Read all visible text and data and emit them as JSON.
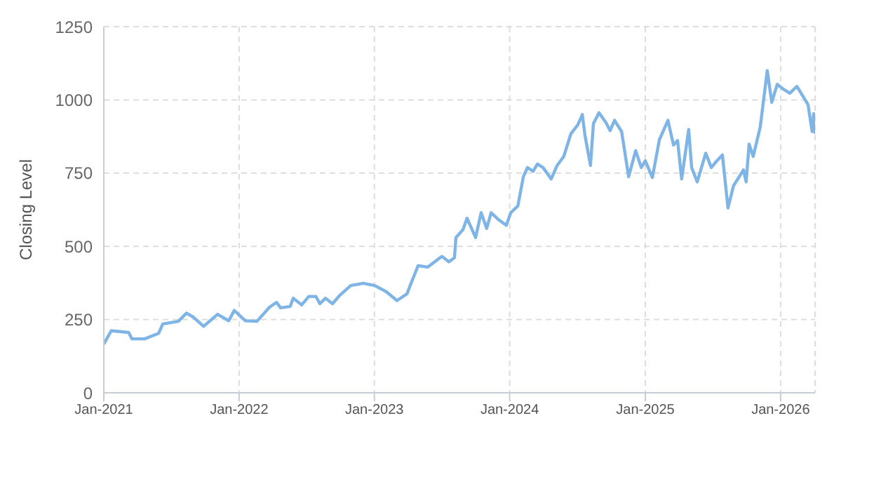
{
  "chart_data": {
    "type": "line",
    "ylabel": "Closing Level",
    "x": [
      "2021-01-01",
      "2021-01-21",
      "2021-03-09",
      "2021-03-18",
      "2021-04-21",
      "2021-05-29",
      "2021-06-09",
      "2021-07-21",
      "2021-08-12",
      "2021-08-31",
      "2021-09-27",
      "2021-11-04",
      "2021-12-04",
      "2021-12-19",
      "2022-01-18",
      "2022-02-18",
      "2022-03-24",
      "2022-04-12",
      "2022-04-23",
      "2022-05-19",
      "2022-05-27",
      "2022-06-19",
      "2022-07-08",
      "2022-07-27",
      "2022-08-07",
      "2022-08-22",
      "2022-09-10",
      "2022-09-29",
      "2022-10-29",
      "2022-12-02",
      "2023-01-02",
      "2023-02-01",
      "2023-03-03",
      "2023-03-30",
      "2023-04-10",
      "2023-04-29",
      "2023-05-25",
      "2023-07-02",
      "2023-07-21",
      "2023-08-05",
      "2023-08-09",
      "2023-08-28",
      "2023-09-08",
      "2023-10-01",
      "2023-10-16",
      "2023-10-31",
      "2023-11-12",
      "2023-12-01",
      "2023-12-23",
      "2024-01-04",
      "2024-01-23",
      "2024-02-07",
      "2024-02-18",
      "2024-03-04",
      "2024-03-16",
      "2024-03-31",
      "2024-04-22",
      "2024-05-08",
      "2024-05-26",
      "2024-06-14",
      "2024-07-03",
      "2024-07-15",
      "2024-07-22",
      "2024-08-06",
      "2024-08-14",
      "2024-08-29",
      "2024-09-17",
      "2024-09-28",
      "2024-10-10",
      "2024-10-29",
      "2024-11-17",
      "2024-12-06",
      "2024-12-21",
      "2025-01-01",
      "2025-01-20",
      "2025-02-08",
      "2025-03-03",
      "2025-03-18",
      "2025-03-29",
      "2025-04-09",
      "2025-04-28",
      "2025-05-06",
      "2025-05-21",
      "2025-06-13",
      "2025-06-28",
      "2025-07-13",
      "2025-07-28",
      "2025-08-12",
      "2025-08-27",
      "2025-09-23",
      "2025-09-30",
      "2025-10-08",
      "2025-10-19",
      "2025-11-07",
      "2025-11-26",
      "2025-12-08",
      "2025-12-23",
      "2026-01-07",
      "2026-01-26",
      "2026-02-14",
      "2026-03-01",
      "2026-03-16",
      "2026-03-27",
      "2026-03-31",
      "2026-04-04"
    ],
    "series": [
      {
        "color": "#7eb4e6",
        "values": [
          166,
          212,
          206,
          184,
          184,
          203,
          235,
          244,
          272,
          258,
          227,
          268,
          246,
          281,
          246,
          244,
          292,
          309,
          290,
          295,
          323,
          300,
          329,
          329,
          304,
          323,
          304,
          332,
          366,
          374,
          366,
          346,
          315,
          338,
          374,
          434,
          429,
          466,
          447,
          461,
          530,
          557,
          596,
          530,
          615,
          561,
          615,
          592,
          572,
          615,
          638,
          738,
          769,
          756,
          781,
          769,
          730,
          776,
          807,
          884,
          915,
          950,
          880,
          776,
          919,
          956,
          922,
          895,
          930,
          892,
          738,
          827,
          769,
          792,
          735,
          864,
          930,
          846,
          861,
          730,
          899,
          769,
          720,
          818,
          769,
          792,
          812,
          631,
          707,
          761,
          720,
          849,
          807,
          907,
          1100,
          992,
          1053,
          1038,
          1023,
          1046,
          1015,
          984,
          892,
          953,
          884
        ]
      }
    ],
    "xlim": [
      "2021-01-01",
      "2026-04-04"
    ],
    "xticks": [
      {
        "value": "2021-01-01",
        "label": "Jan-2021"
      },
      {
        "value": "2022-01-01",
        "label": "Jan-2022"
      },
      {
        "value": "2023-01-01",
        "label": "Jan-2023"
      },
      {
        "value": "2024-01-01",
        "label": "Jan-2024"
      },
      {
        "value": "2025-01-01",
        "label": "Jan-2025"
      },
      {
        "value": "2026-01-01",
        "label": "Jan-2026"
      }
    ],
    "ylim": [
      0,
      1250
    ],
    "yticks": [
      0,
      250,
      500,
      750,
      1000,
      1250
    ],
    "grid": true,
    "marker": "none",
    "line_style": "solid"
  }
}
